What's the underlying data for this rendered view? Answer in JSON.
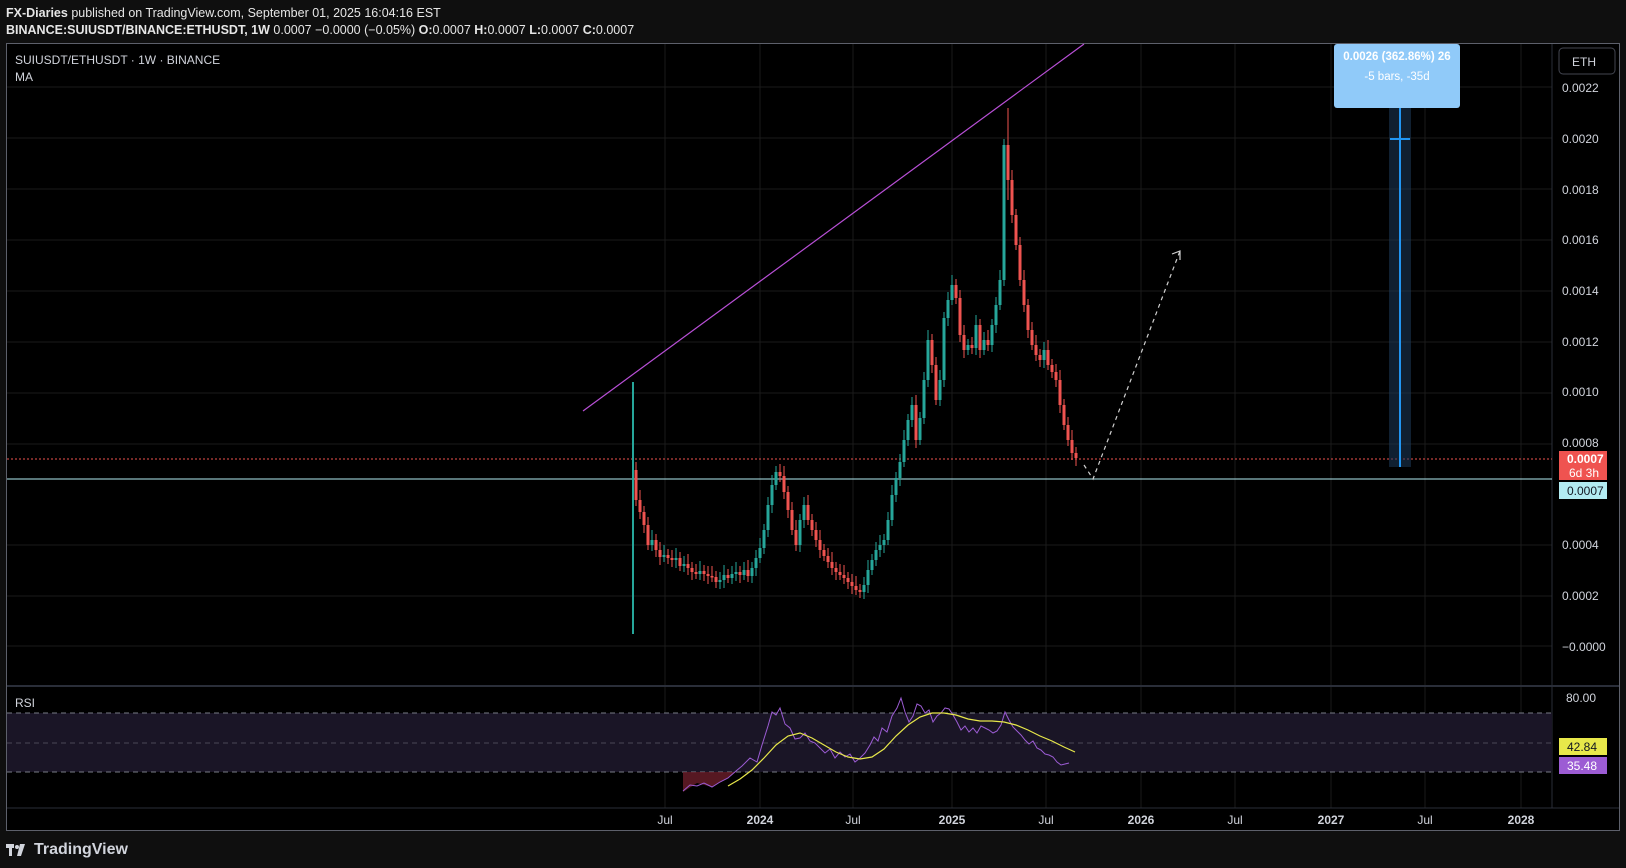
{
  "header": {
    "author": "FX-Diaries",
    "published_text": "published on TradingView.com, September 01, 2025 16:04:16 EST",
    "symbol_line_name": "BINANCE:SUIUSDT/BINANCE:ETHUSDT, 1W",
    "symbol_line_values": "0.0007 −0.0000 (−0.05%)",
    "o_label": "O:",
    "o_value": "0.0007",
    "h_label": "H:",
    "h_value": "0.0007",
    "l_label": "L:",
    "l_value": "0.0007",
    "c_label": "C:",
    "c_value": "0.0007"
  },
  "legend": {
    "symbol": "SUIUSDT/ETHUSDT · 1W · BINANCE",
    "indicator": "MA"
  },
  "currency_button": "ETH",
  "price_axis": [
    "0.0022",
    "0.0020",
    "0.0018",
    "0.0016",
    "0.0014",
    "0.0012",
    "0.0010",
    "0.0008",
    "0.0004",
    "0.0002",
    "−0.0000"
  ],
  "price_tags": {
    "last_price": "0.0007",
    "countdown": "6d 3h",
    "line_price": "0.0007"
  },
  "measure": {
    "line1": "0.0026 (362.86%) 26",
    "line2": "-5 bars, -35d"
  },
  "rsi": {
    "label": "RSI",
    "axis_top": "80.00",
    "ma_value": "42.84",
    "rsi_value": "35.48"
  },
  "time_axis": [
    "Jul",
    "2024",
    "Jul",
    "2025",
    "Jul",
    "2026",
    "Jul",
    "2027",
    "Jul",
    "2028"
  ],
  "brand": "TradingView",
  "colors": {
    "up": "#26a69a",
    "down": "#ef5350",
    "trendline": "#b84fd6",
    "hline": "#b2ebf2",
    "measure": "#2962ff",
    "rsi": "#9c5cd4",
    "rsi_ma": "#e8e84a"
  }
}
